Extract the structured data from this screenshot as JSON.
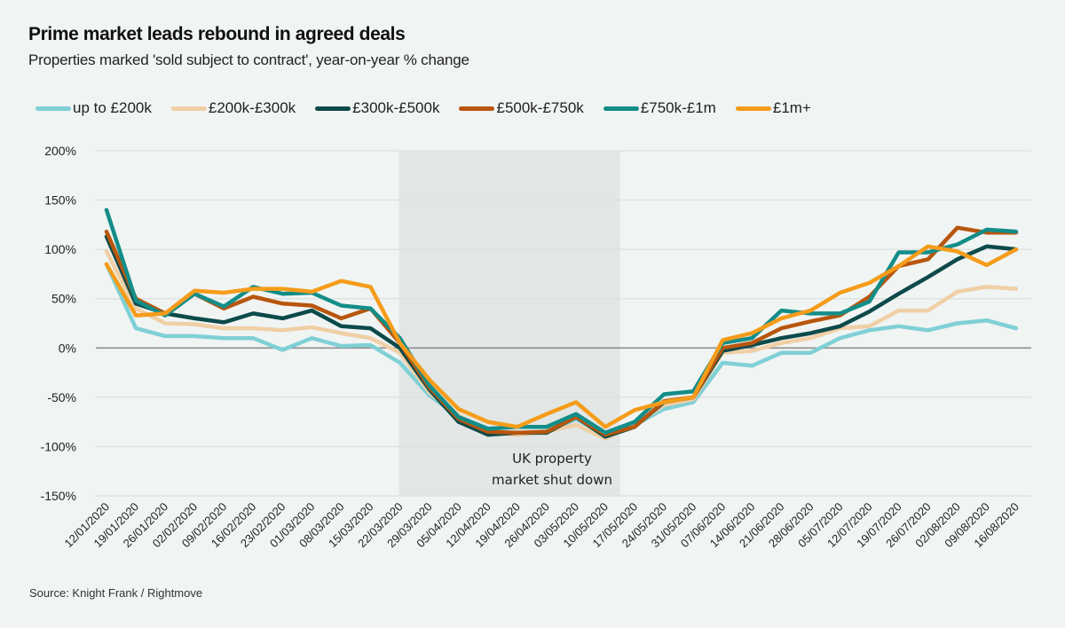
{
  "chart_data": {
    "type": "line",
    "title": "Prime market leads rebound in agreed deals",
    "subtitle": "Properties marked 'sold subject to contract', year-on-year  % change",
    "xlabel": "",
    "ylabel": "",
    "ylim": [
      -150,
      200
    ],
    "yticks": [
      200,
      150,
      100,
      50,
      0,
      -50,
      -100,
      -150
    ],
    "ytick_labels": [
      "200%",
      "150%",
      "100%",
      "50%",
      "0%",
      "-50%",
      "-100%",
      "-150%"
    ],
    "grid": true,
    "legend_position": "top",
    "x": [
      "12/01/2020",
      "19/01/2020",
      "26/01/2020",
      "02/02/2020",
      "09/02/2020",
      "16/02/2020",
      "23/02/2020",
      "01/03/2020",
      "08/03/2020",
      "15/03/2020",
      "22/03/2020",
      "29/03/2020",
      "05/04/2020",
      "12/04/2020",
      "19/04/2020",
      "26/04/2020",
      "03/05/2020",
      "10/05/2020",
      "17/05/2020",
      "24/05/2020",
      "31/05/2020",
      "07/06/2020",
      "14/06/2020",
      "21/06/2020",
      "28/06/2020",
      "05/07/2020",
      "12/07/2020",
      "19/07/2020",
      "26/07/2020",
      "02/08/2020",
      "09/08/2020",
      "16/08/2020"
    ],
    "series": [
      {
        "name": "up to £200k",
        "color": "#7fd0d6",
        "values": [
          85,
          20,
          12,
          12,
          10,
          10,
          -2,
          10,
          2,
          3,
          -15,
          -48,
          -70,
          -85,
          -88,
          -85,
          -72,
          -88,
          -78,
          -62,
          -55,
          -15,
          -18,
          -5,
          -5,
          10,
          18,
          22,
          18,
          25,
          28,
          20
        ]
      },
      {
        "name": "£200k-£300k",
        "color": "#f0cfa6",
        "values": [
          98,
          40,
          25,
          24,
          20,
          20,
          18,
          21,
          15,
          10,
          -5,
          -45,
          -68,
          -86,
          -88,
          -85,
          -78,
          -92,
          -78,
          -58,
          -52,
          -5,
          -3,
          5,
          10,
          20,
          22,
          38,
          38,
          57,
          62,
          60
        ]
      },
      {
        "name": "£300k-£500k",
        "color": "#0d4a4a",
        "values": [
          113,
          45,
          35,
          30,
          26,
          35,
          30,
          38,
          22,
          20,
          0,
          -42,
          -75,
          -88,
          -86,
          -86,
          -70,
          -90,
          -80,
          -55,
          -50,
          -3,
          3,
          10,
          15,
          22,
          37,
          55,
          72,
          90,
          103,
          100
        ]
      },
      {
        "name": "£500k-£750k",
        "color": "#b8560e",
        "values": [
          118,
          50,
          35,
          55,
          40,
          52,
          45,
          43,
          30,
          40,
          5,
          -40,
          -72,
          -85,
          -86,
          -85,
          -70,
          -88,
          -80,
          -54,
          -50,
          0,
          5,
          20,
          27,
          33,
          52,
          83,
          90,
          122,
          117,
          117
        ]
      },
      {
        "name": "£750k-£1m",
        "color": "#138d88",
        "values": [
          140,
          48,
          33,
          55,
          42,
          62,
          55,
          56,
          43,
          40,
          10,
          -38,
          -70,
          -82,
          -80,
          -80,
          -67,
          -86,
          -75,
          -47,
          -44,
          5,
          10,
          38,
          35,
          35,
          47,
          97,
          97,
          105,
          120,
          118
        ]
      },
      {
        "name": "£1m+",
        "color": "#f59c1a",
        "values": [
          85,
          33,
          35,
          58,
          56,
          60,
          60,
          57,
          68,
          62,
          5,
          -32,
          -62,
          -75,
          -80,
          -67,
          -55,
          -80,
          -63,
          -55,
          -50,
          8,
          15,
          30,
          38,
          56,
          66,
          83,
          103,
          98,
          84,
          100
        ]
      }
    ],
    "shaded_region": {
      "from": "22/03/2020",
      "to_after": "10/05/2020",
      "label_lines": [
        "UK property",
        "market shut down"
      ]
    },
    "source": "Source: Knight Frank / Rightmove"
  }
}
